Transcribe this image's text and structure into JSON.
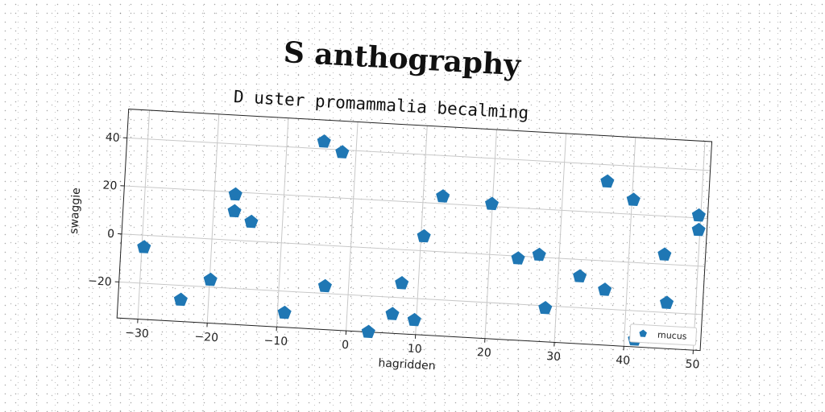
{
  "chart_data": {
    "type": "scatter",
    "title": "S anthography",
    "subtitle": "D uster promammalia becalming",
    "xlabel": "hagridden",
    "ylabel": "swaggie",
    "xlim": [
      -33,
      51
    ],
    "ylim": [
      -35,
      52
    ],
    "xticks": [
      -30,
      -20,
      -10,
      0,
      10,
      20,
      30,
      40,
      50
    ],
    "yticks": [
      -20,
      0,
      20,
      40
    ],
    "xtick_labels": [
      "−30",
      "−20",
      "−10",
      "0",
      "10",
      "20",
      "30",
      "40",
      "50"
    ],
    "ytick_labels": [
      "−20",
      "0",
      "20",
      "40"
    ],
    "grid": true,
    "legend": {
      "position": "bottom-right",
      "entries": [
        "mucus"
      ]
    },
    "series": [
      {
        "name": "mucus",
        "marker": "pentagon",
        "color": "#1f77b4",
        "x": [
          -29.7,
          -24.0,
          -19.9,
          -17.0,
          -17.0,
          -14.5,
          -9.0,
          -3.4,
          -4.7,
          -2.0,
          3.2,
          6.5,
          7.6,
          9.7,
          10.4,
          12.8,
          19.9,
          24.1,
          27.1,
          28.4,
          33.1,
          36.8,
          36.3,
          40.2,
          41.5,
          45.1,
          45.8,
          49.7,
          49.8
        ],
        "y": [
          -5,
          -26,
          -17,
          19,
          12,
          8,
          -29,
          -17,
          43,
          39,
          -35,
          -27,
          -14,
          -29,
          6,
          23,
          21,
          -1,
          1,
          -21,
          -7,
          -12,
          33,
          26,
          -32,
          4,
          -16,
          21,
          15
        ]
      }
    ]
  }
}
